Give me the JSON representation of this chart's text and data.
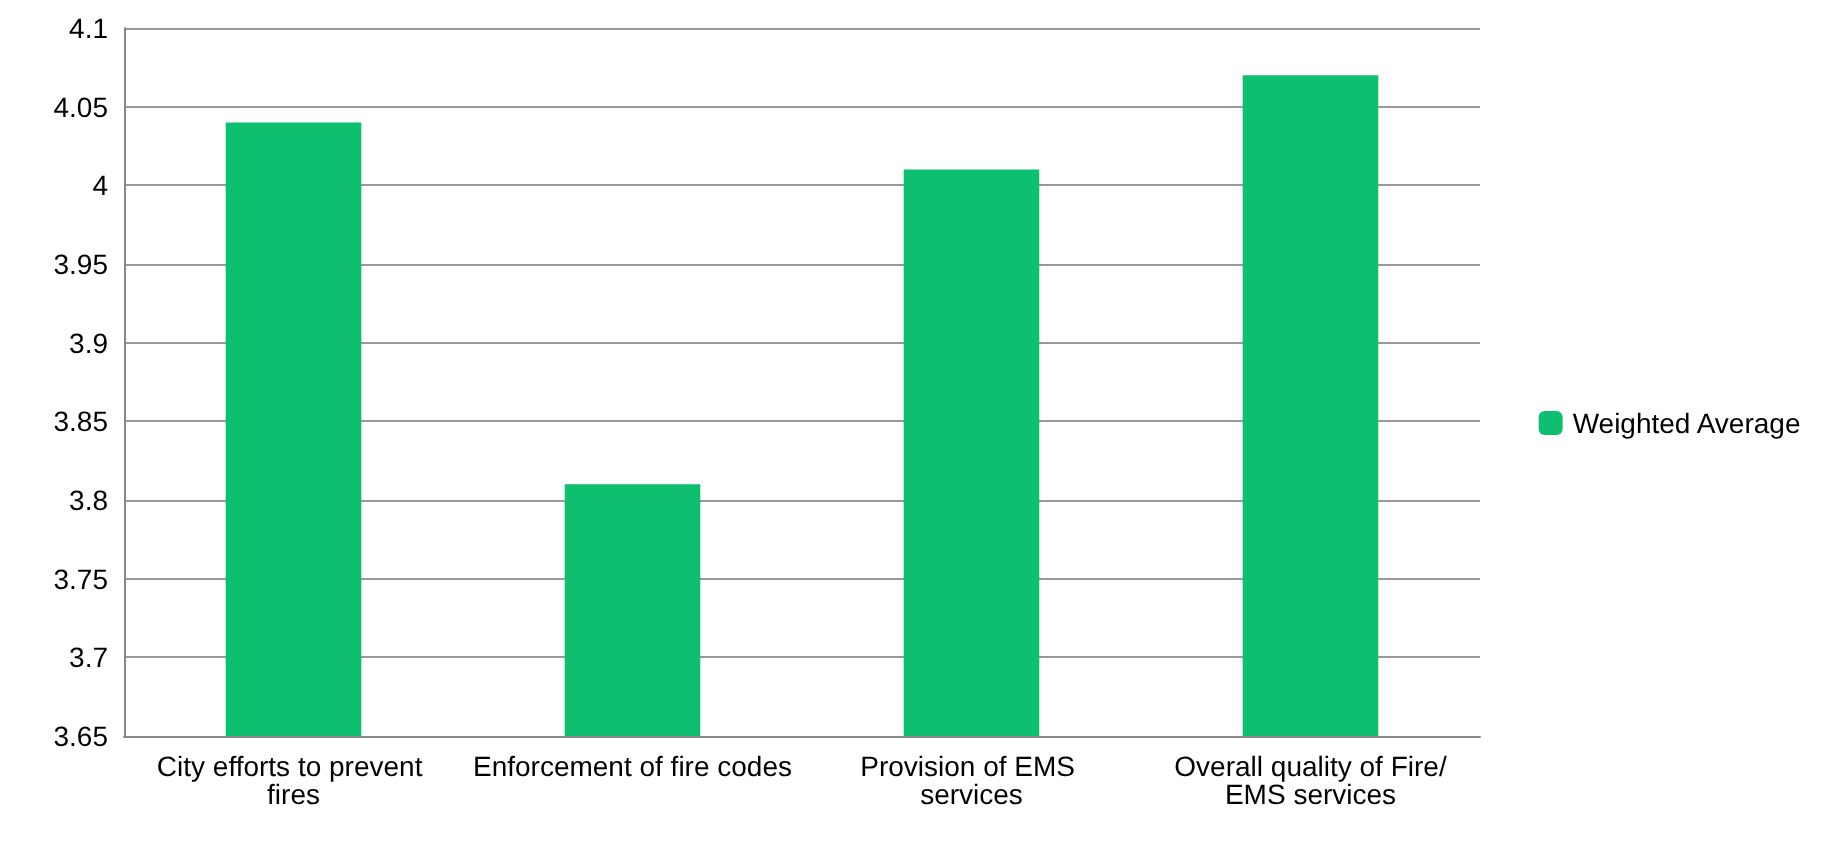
{
  "chart_data": {
    "type": "bar",
    "categories": [
      "City efforts to prevent fires",
      "Enforcement of fire codes",
      "Provision of EMS services",
      "Overall quality of Fire/EMS services"
    ],
    "series": [
      {
        "name": "Weighted Average",
        "color": "#0dbf6f",
        "values": [
          4.04,
          3.81,
          4.01,
          4.07
        ]
      }
    ],
    "ylim": [
      3.65,
      4.1
    ],
    "yticks": [
      3.65,
      3.7,
      3.75,
      3.8,
      3.85,
      3.9,
      3.95,
      4,
      4.05,
      4.1
    ],
    "grid": "y",
    "legend": "right"
  }
}
